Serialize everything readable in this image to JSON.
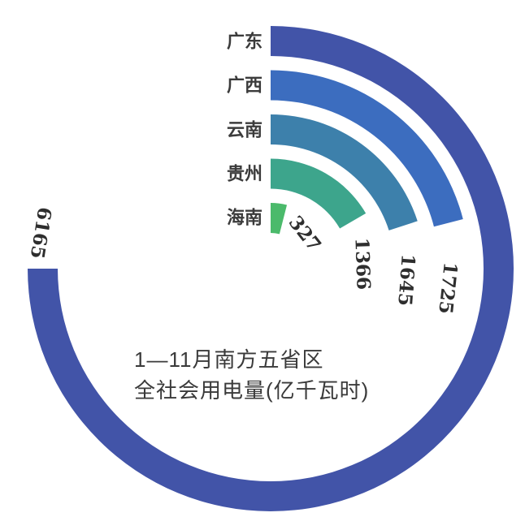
{
  "page": {
    "background": "#ffffff"
  },
  "chart_data": {
    "type": "bar",
    "variant": "radial-bar",
    "title": "1—11月南方五省区全社会用电量(亿千瓦时)",
    "title_lines": [
      "1—11月南方五省区",
      "全社会用电量(亿千瓦时)"
    ],
    "categories": [
      "广东",
      "广西",
      "云南",
      "贵州",
      "海南"
    ],
    "values": [
      6165,
      1725,
      1645,
      1366,
      327
    ],
    "colors": [
      "#4254a8",
      "#3c6dbf",
      "#3d80ab",
      "#3da58c",
      "#4bba6b"
    ],
    "layout_hints": {
      "start_angle_deg": 0,
      "max_sweep_deg": 270,
      "direction": "clockwise",
      "value_axis_max": 6165,
      "grid": "off",
      "legend": "none",
      "category_label_color": "#3b3b3b",
      "value_label_color": "#2e2e2e",
      "title_color": "#3a3a3a"
    }
  }
}
